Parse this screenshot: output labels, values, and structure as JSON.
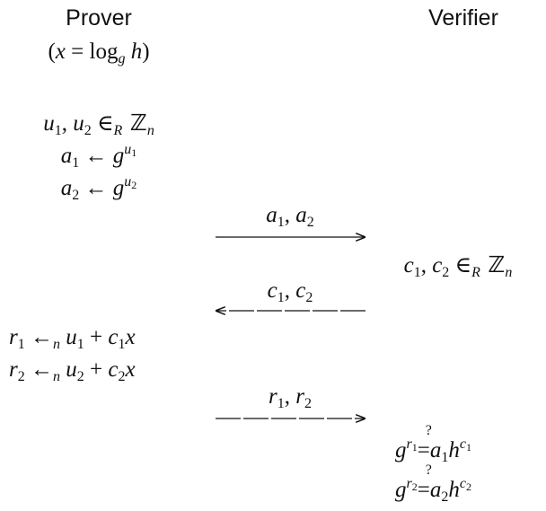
{
  "headers": {
    "prover": "Prover",
    "verifier": "Verifier"
  },
  "prover": {
    "secret": {
      "open": "(",
      "x": "x",
      "eq": " = log",
      "g": "g",
      "h": " h",
      "close": ")"
    },
    "choose": {
      "u1": "u",
      "i1": "1",
      "comma": ", ",
      "u2": "u",
      "i2": "2",
      "in": " ∈",
      "R": "R",
      "Z": " ℤ",
      "n": "n"
    },
    "a1_line": {
      "a": "a",
      "i": "1",
      "arrow": " ← ",
      "g": "g",
      "u": "u",
      "ui": "1"
    },
    "a2_line": {
      "a": "a",
      "i": "2",
      "arrow": " ← ",
      "g": "g",
      "u": "u",
      "ui": "2"
    },
    "r1_line": {
      "r": "r",
      "i": "1",
      "arrow": " ←",
      "n": "n",
      "u": " u",
      "ui": "1",
      "plus": " + ",
      "c": "c",
      "ci": "1",
      "x": "x"
    },
    "r2_line": {
      "r": "r",
      "i": "2",
      "arrow": " ←",
      "n": "n",
      "u": " u",
      "ui": "2",
      "plus": " + ",
      "c": "c",
      "ci": "2",
      "x": "x"
    }
  },
  "verifier": {
    "choose": {
      "c1": "c",
      "i1": "1",
      "comma": ", ",
      "c2": "c",
      "i2": "2",
      "in": " ∈",
      "R": "R",
      "Z": " ℤ",
      "n": "n"
    },
    "check1": {
      "g": "g",
      "r": "r",
      "ri": "1",
      "q": "?",
      "eq": " = ",
      "a": "a",
      "ai": "1",
      "h": "h",
      "c": "c",
      "ci": "1"
    },
    "check2": {
      "g": "g",
      "r": "r",
      "ri": "2",
      "q": "?",
      "eq": " = ",
      "a": "a",
      "ai": "2",
      "h": "h",
      "c": "c",
      "ci": "2"
    }
  },
  "messages": {
    "m1": {
      "v1": "a",
      "i1": "1",
      "comma": ", ",
      "v2": "a",
      "i2": "2",
      "direction": "prover-to-verifier"
    },
    "m2": {
      "v1": "c",
      "i1": "1",
      "comma": ", ",
      "v2": "c",
      "i2": "2",
      "direction": "verifier-to-prover"
    },
    "m3": {
      "v1": "r",
      "i1": "1",
      "comma": ", ",
      "v2": "r",
      "i2": "2",
      "direction": "prover-to-verifier"
    }
  }
}
